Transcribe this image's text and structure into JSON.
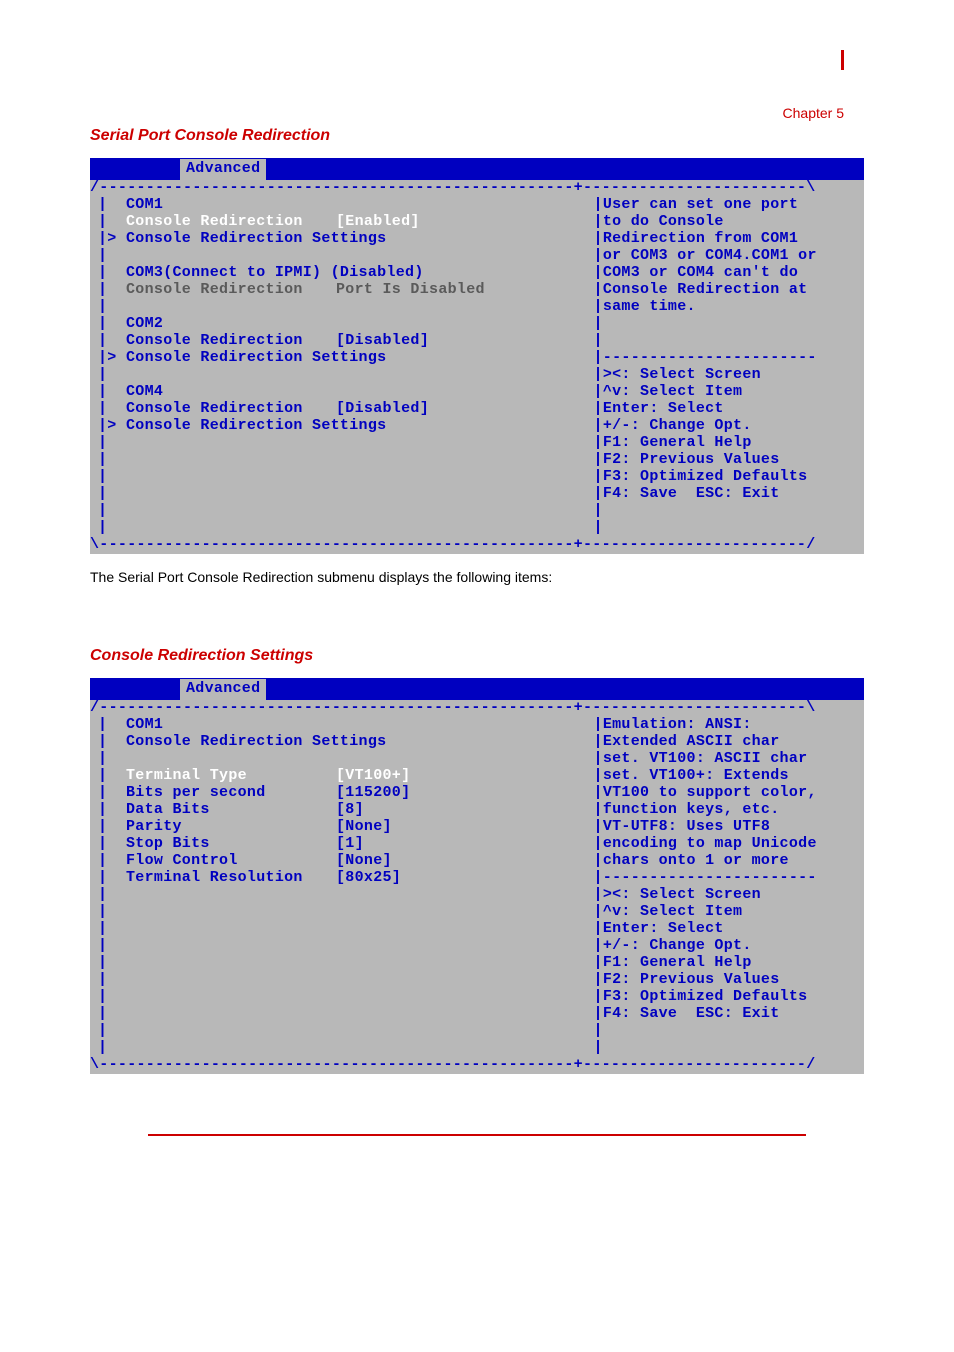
{
  "chapterLabel": "Chapter 5",
  "section1": {
    "title": "Serial Port Console Redirection",
    "tab": "Advanced",
    "main": {
      "com1": {
        "hdr": "COM1",
        "redirLabel": "Console Redirection",
        "redirValue": "[Enabled]",
        "settings": "Console Redirection Settings"
      },
      "com3": {
        "hdr": "COM3(Connect to IPMI) (Disabled)",
        "redirLabel": "Console Redirection",
        "redirValue": "Port Is Disabled"
      },
      "com2": {
        "hdr": "COM2",
        "redirLabel": "Console Redirection",
        "redirValue": "[Disabled]",
        "settings": "Console Redirection Settings"
      },
      "com4": {
        "hdr": "COM4",
        "redirLabel": "Console Redirection",
        "redirValue": "[Disabled]",
        "settings": "Console Redirection Settings"
      }
    },
    "help": [
      "User can set one port",
      "to do Console",
      "Redirection from COM1",
      "or COM3 or COM4.COM1 or",
      "COM3 or COM4 can't do",
      "Console Redirection at",
      "same time."
    ],
    "keys": [
      "><: Select Screen",
      "^v: Select Item",
      "Enter: Select",
      "+/-: Change Opt.",
      "F1: General Help",
      "F2: Previous Values",
      "F3: Optimized Defaults",
      "F4: Save  ESC: Exit"
    ],
    "descPara": "The Serial Port Console Redirection submenu displays the following items:"
  },
  "section2": {
    "title": "Console Redirection Settings",
    "tab": "Advanced",
    "hdr1": "COM1",
    "hdr2": "Console Redirection Settings",
    "rows": [
      {
        "l": "Terminal Type",
        "v": "[VT100+]",
        "sel": true
      },
      {
        "l": "Bits per second",
        "v": "[115200]"
      },
      {
        "l": "Data Bits",
        "v": "[8]"
      },
      {
        "l": "Parity",
        "v": "[None]"
      },
      {
        "l": "Stop Bits",
        "v": "[1]"
      },
      {
        "l": "Flow Control",
        "v": "[None]"
      },
      {
        "l": "Terminal Resolution",
        "v": "[80x25]"
      }
    ],
    "help": [
      "Emulation: ANSI:",
      "Extended ASCII char",
      "set. VT100: ASCII char",
      "set. VT100+: Extends",
      "VT100 to support color,",
      "function keys, etc.",
      "VT-UTF8: Uses UTF8",
      "encoding to map Unicode",
      "chars onto 1 or more"
    ],
    "keys": [
      "><: Select Screen",
      "^v: Select Item",
      "Enter: Select",
      "+/-: Change Opt.",
      "F1: General Help",
      "F2: Previous Values",
      "F3: Optimized Defaults",
      "F4: Save  ESC: Exit"
    ]
  },
  "colors": {
    "biosBg": "#b8b8b8",
    "biosBlue": "#0000c0",
    "accentRed": "#cc0000",
    "dimGray": "#5a5a5a",
    "selWhite": "#ffffff"
  }
}
